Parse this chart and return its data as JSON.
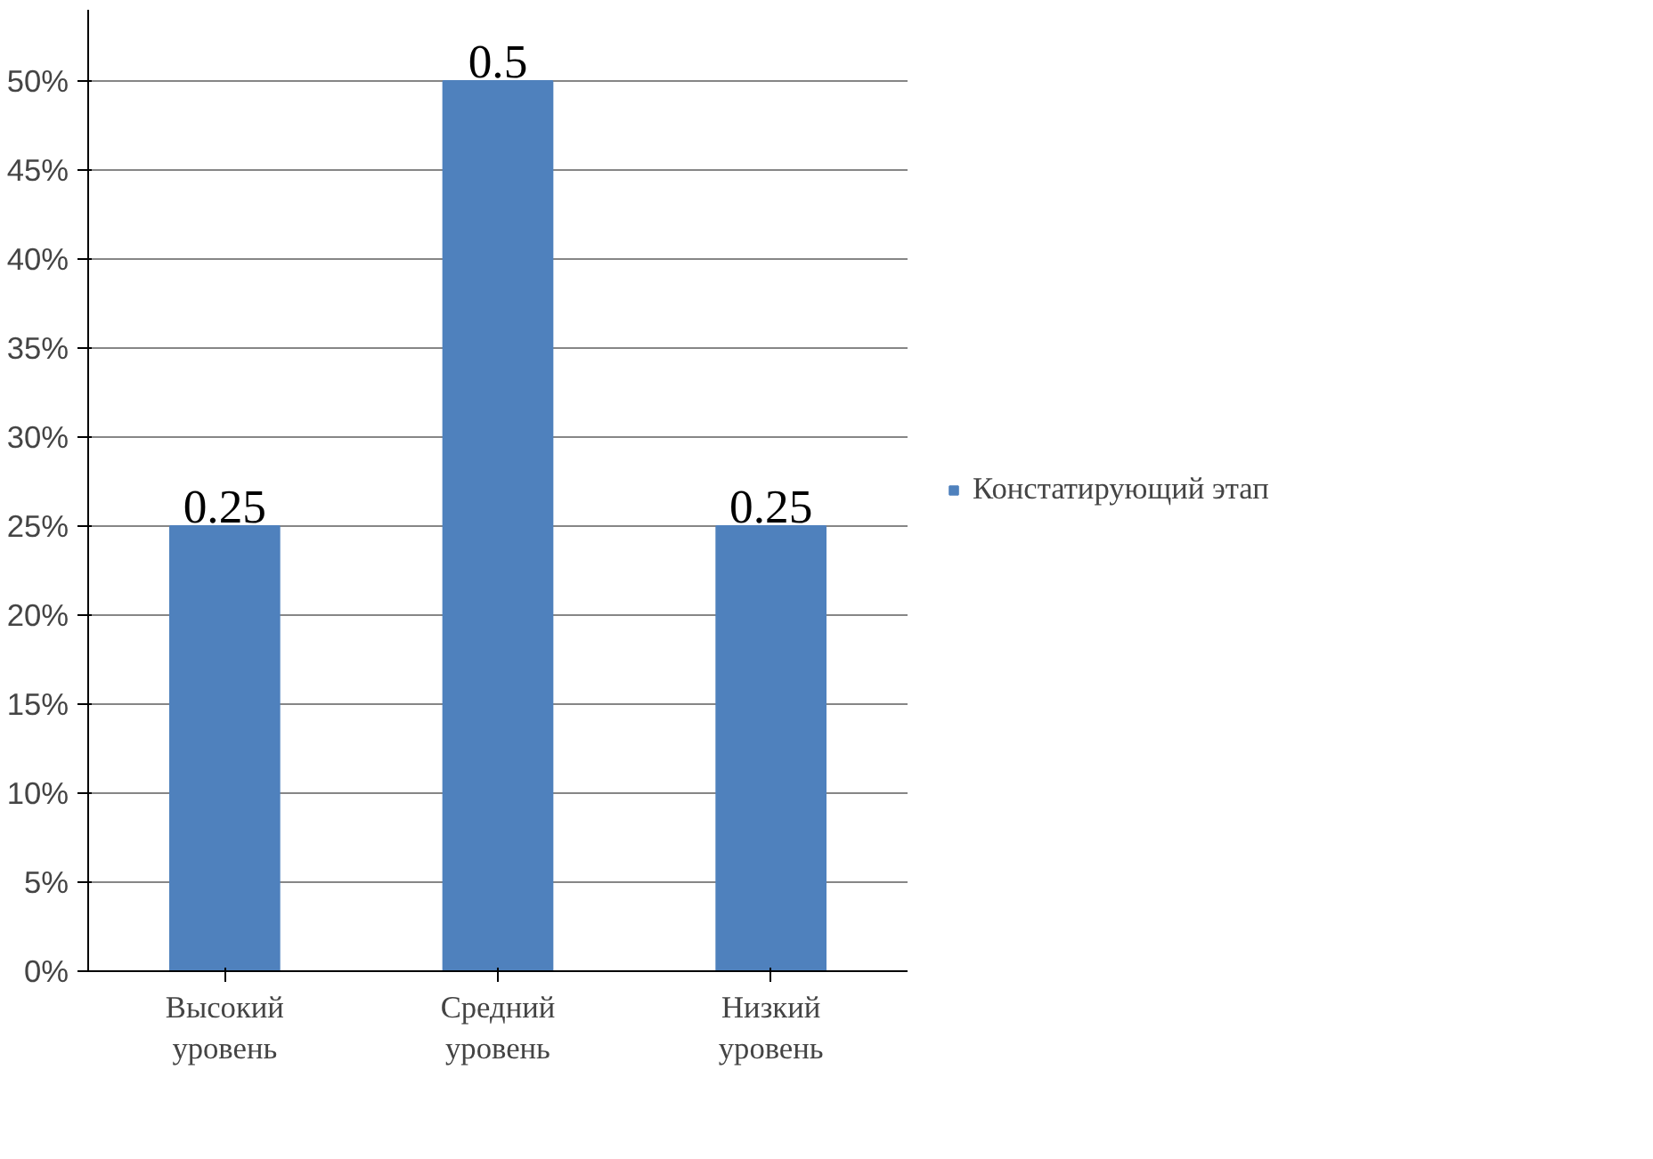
{
  "chart_data": {
    "type": "bar",
    "categories": [
      "Высокий уровень",
      "Средний уровень",
      "Низкий уровень"
    ],
    "series": [
      {
        "name": "Констатирующий этап",
        "color": "#4f81bd",
        "values": [
          0.25,
          0.5,
          0.25
        ]
      }
    ],
    "data_labels": true,
    "ylim": [
      0,
      0.54
    ],
    "yticks": [
      {
        "value": 0,
        "label": "0%"
      },
      {
        "value": 0.05,
        "label": "5%"
      },
      {
        "value": 0.1,
        "label": "10%"
      },
      {
        "value": 0.15,
        "label": "15%"
      },
      {
        "value": 0.2,
        "label": "20%"
      },
      {
        "value": 0.25,
        "label": "25%"
      },
      {
        "value": 0.3,
        "label": "30%"
      },
      {
        "value": 0.35,
        "label": "35%"
      },
      {
        "value": 0.4,
        "label": "40%"
      },
      {
        "value": 0.45,
        "label": "45%"
      },
      {
        "value": 0.5,
        "label": "50%"
      }
    ],
    "grid": "y",
    "legend": "right"
  }
}
